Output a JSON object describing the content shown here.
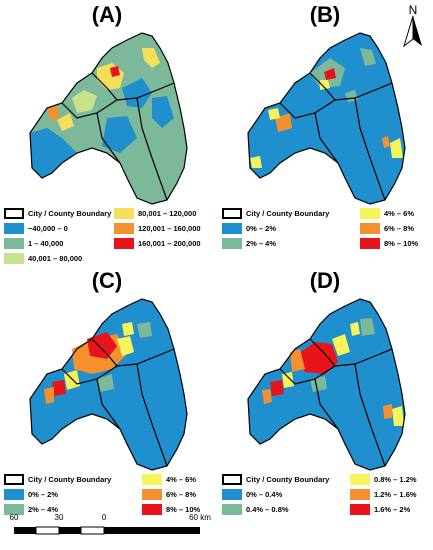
{
  "panels": [
    {
      "label": "(A)",
      "legend": {
        "boundary": "City / County Boundary",
        "classes": [
          {
            "label": "−40,000 – 0",
            "color": "#1f8fce"
          },
          {
            "label": "1 – 40,000",
            "color": "#7cb89a"
          },
          {
            "label": "40,001 – 80,000",
            "color": "#c8e28a"
          },
          {
            "label": "80,001 – 120,000",
            "color": "#f5de5a"
          },
          {
            "label": "120,001 – 160,000",
            "color": "#f5902e"
          },
          {
            "label": "160,001 – 200,000",
            "color": "#e8141c"
          }
        ]
      }
    },
    {
      "label": "(B)",
      "legend": {
        "boundary": "City / County Boundary",
        "classes": [
          {
            "label": "0% – 2%",
            "color": "#1f8fce"
          },
          {
            "label": "2% – 4%",
            "color": "#7cb89a"
          },
          {
            "label": "4% – 6%",
            "color": "#f7f35a"
          },
          {
            "label": "6% – 8%",
            "color": "#f5902e"
          },
          {
            "label": "8% – 10%",
            "color": "#e8141c"
          }
        ]
      }
    },
    {
      "label": "(C)",
      "legend": {
        "boundary": "City / County Boundary",
        "classes": [
          {
            "label": "0% – 2%",
            "color": "#1f8fce"
          },
          {
            "label": "2% – 4%",
            "color": "#7cb89a"
          },
          {
            "label": "4% – 6%",
            "color": "#f7f35a"
          },
          {
            "label": "6% – 8%",
            "color": "#f5902e"
          },
          {
            "label": "8% – 10%",
            "color": "#e8141c"
          }
        ]
      }
    },
    {
      "label": "(D)",
      "legend": {
        "boundary": "City / County Boundary",
        "classes": [
          {
            "label": "0% – 0.4%",
            "color": "#1f8fce"
          },
          {
            "label": "0.4% – 0.8%",
            "color": "#7cb89a"
          },
          {
            "label": "0.8% – 1.2%",
            "color": "#f7f35a"
          },
          {
            "label": "1.2% – 1.6%",
            "color": "#f5902e"
          },
          {
            "label": "1.6% – 2%",
            "color": "#e8141c"
          }
        ]
      }
    }
  ],
  "north_arrow": {
    "letter": "N"
  },
  "scale_bar": {
    "ticks": [
      "60",
      "30",
      "0",
      "60 km"
    ]
  }
}
